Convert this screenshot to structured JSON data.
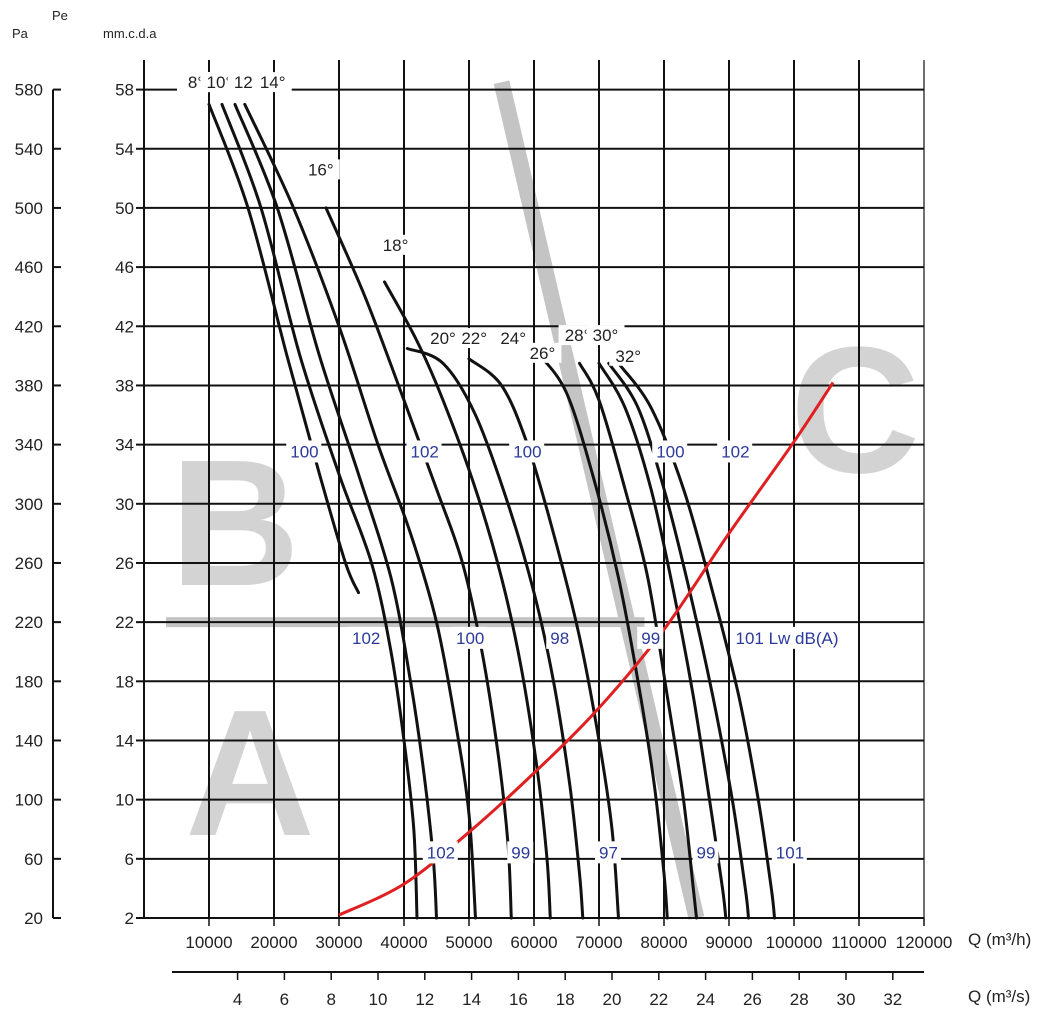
{
  "chart_data": {
    "type": "line",
    "pe_label": "Pe",
    "unit_pa": "Pa",
    "unit_mmcda": "mm.c.d.a",
    "x_label_m3h": "Q (m³/h)",
    "x_label_m3s": "Q (m³/s)",
    "xlim_m3h": [
      0,
      120000
    ],
    "ylim_mmcda": [
      2,
      60
    ],
    "x_ticks_m3h": [
      10000,
      20000,
      30000,
      40000,
      50000,
      60000,
      70000,
      80000,
      90000,
      100000,
      110000,
      120000
    ],
    "x_ticks_m3s": [
      4,
      6,
      8,
      10,
      12,
      14,
      16,
      18,
      20,
      22,
      24,
      26,
      28,
      30,
      32
    ],
    "y_ticks_mmcda": [
      2,
      6,
      10,
      14,
      18,
      22,
      26,
      30,
      34,
      38,
      42,
      46,
      50,
      54,
      58
    ],
    "y_ticks_pa": [
      20,
      60,
      100,
      140,
      180,
      220,
      260,
      300,
      340,
      380,
      420,
      460,
      500,
      540,
      580
    ],
    "zone_labels": [
      "A",
      "B",
      "C"
    ],
    "series": [
      {
        "name": "8°",
        "points": [
          [
            10000,
            57
          ],
          [
            16000,
            50
          ],
          [
            22000,
            40
          ],
          [
            27000,
            32
          ],
          [
            31000,
            26
          ],
          [
            33000,
            24
          ]
        ]
      },
      {
        "name": "10°",
        "points": [
          [
            12000,
            57
          ],
          [
            18000,
            50
          ],
          [
            24000,
            40
          ],
          [
            30000,
            32
          ],
          [
            35000,
            26
          ],
          [
            38000,
            20
          ],
          [
            40000,
            14
          ],
          [
            41500,
            8
          ],
          [
            42000,
            2
          ]
        ]
      },
      {
        "name": "12°",
        "points": [
          [
            14000,
            57
          ],
          [
            20500,
            50
          ],
          [
            27000,
            40
          ],
          [
            33000,
            32
          ],
          [
            38000,
            25
          ],
          [
            41000,
            18
          ],
          [
            43000,
            12
          ],
          [
            44500,
            6
          ],
          [
            45000,
            2
          ]
        ]
      },
      {
        "name": "14°",
        "points": [
          [
            15500,
            57
          ],
          [
            23000,
            50
          ],
          [
            30000,
            42
          ],
          [
            36000,
            34
          ],
          [
            41000,
            28
          ],
          [
            45000,
            22
          ],
          [
            48000,
            15
          ],
          [
            50000,
            9
          ],
          [
            51000,
            2
          ]
        ]
      },
      {
        "name": "16°",
        "points": [
          [
            28000,
            50
          ],
          [
            34000,
            44
          ],
          [
            40000,
            37
          ],
          [
            45000,
            31
          ],
          [
            49000,
            26
          ],
          [
            52000,
            20
          ],
          [
            54500,
            13
          ],
          [
            56000,
            7
          ],
          [
            56500,
            2
          ]
        ]
      },
      {
        "name": "18°",
        "points": [
          [
            37000,
            45
          ],
          [
            42000,
            41
          ],
          [
            46000,
            37
          ],
          [
            51000,
            31
          ],
          [
            55000,
            25
          ],
          [
            58000,
            19
          ],
          [
            60500,
            12
          ],
          [
            62000,
            6
          ],
          [
            62500,
            2
          ]
        ]
      },
      {
        "name": "20°",
        "points": [
          [
            40500,
            40.5
          ],
          [
            46000,
            39.5
          ],
          [
            51000,
            36
          ],
          [
            56000,
            30
          ],
          [
            60000,
            24
          ],
          [
            63000,
            18
          ],
          [
            65500,
            11
          ],
          [
            67000,
            5
          ],
          [
            67500,
            2
          ]
        ]
      },
      {
        "name": "22°",
        "points": [
          [
            50000,
            39.8
          ],
          [
            55000,
            38
          ],
          [
            59000,
            34
          ],
          [
            63000,
            28
          ],
          [
            67000,
            21
          ],
          [
            70000,
            14
          ],
          [
            72000,
            8
          ],
          [
            73000,
            2
          ]
        ]
      },
      {
        "name": "24°",
        "points": [
          [
            61000,
            40
          ],
          [
            65000,
            37.5
          ],
          [
            69000,
            32
          ],
          [
            73000,
            25
          ],
          [
            76000,
            18
          ],
          [
            78500,
            11
          ],
          [
            80000,
            5
          ],
          [
            80500,
            2
          ]
        ]
      },
      {
        "name": "26°",
        "points": [
          [
            67000,
            39.5
          ],
          [
            70000,
            37
          ],
          [
            74000,
            31
          ],
          [
            77500,
            25
          ],
          [
            80500,
            17
          ],
          [
            83000,
            10
          ],
          [
            84500,
            4
          ],
          [
            85000,
            2
          ]
        ]
      },
      {
        "name": "28°",
        "points": [
          [
            70000,
            39.5
          ],
          [
            74000,
            36.5
          ],
          [
            78000,
            31
          ],
          [
            81500,
            24
          ],
          [
            84500,
            17
          ],
          [
            87000,
            10
          ],
          [
            89000,
            4
          ],
          [
            89500,
            2
          ]
        ]
      },
      {
        "name": "30°",
        "points": [
          [
            71500,
            39.5
          ],
          [
            76000,
            36.5
          ],
          [
            80000,
            31
          ],
          [
            84000,
            24
          ],
          [
            87500,
            17
          ],
          [
            90500,
            10
          ],
          [
            92500,
            4
          ],
          [
            93000,
            2
          ]
        ]
      },
      {
        "name": "32°",
        "points": [
          [
            73000,
            39.5
          ],
          [
            78000,
            36.5
          ],
          [
            83000,
            31
          ],
          [
            87500,
            24
          ],
          [
            91500,
            17
          ],
          [
            94500,
            10
          ],
          [
            96500,
            4
          ],
          [
            97000,
            2
          ]
        ]
      }
    ],
    "angle_labels": [
      {
        "text": "8°",
        "q": 8000,
        "p": 58.1
      },
      {
        "text": "10°",
        "q": 11600,
        "p": 58.1
      },
      {
        "text": "12°",
        "q": 15800,
        "p": 58.1
      },
      {
        "text": "14°",
        "q": 19800,
        "p": 58.1
      },
      {
        "text": "16°",
        "q": 27200,
        "p": 52.2
      },
      {
        "text": "18°",
        "q": 38700,
        "p": 47.1
      },
      {
        "text": "20°",
        "q": 46000,
        "p": 40.8
      },
      {
        "text": "22°",
        "q": 50800,
        "p": 40.8
      },
      {
        "text": "24°",
        "q": 56800,
        "p": 40.8
      },
      {
        "text": "26°",
        "q": 61300,
        "p": 39.8
      },
      {
        "text": "28°",
        "q": 66700,
        "p": 41.0
      },
      {
        "text": "30°",
        "q": 71000,
        "p": 41.0
      },
      {
        "text": "32°",
        "q": 74500,
        "p": 39.6
      }
    ],
    "noise_labels": [
      {
        "text": "100",
        "q": 22500,
        "p": 33.2
      },
      {
        "text": "102",
        "q": 41000,
        "p": 33.2
      },
      {
        "text": "100",
        "q": 56800,
        "p": 33.2
      },
      {
        "text": "100",
        "q": 78800,
        "p": 33.2
      },
      {
        "text": "102",
        "q": 88800,
        "p": 33.2
      },
      {
        "text": "102",
        "q": 32000,
        "p": 20.6
      },
      {
        "text": "100",
        "q": 48000,
        "p": 20.6
      },
      {
        "text": "98",
        "q": 62500,
        "p": 20.6
      },
      {
        "text": "99",
        "q": 76500,
        "p": 20.6
      },
      {
        "text": "101 Lw dB(A)",
        "q": 91000,
        "p": 20.6
      },
      {
        "text": "102",
        "q": 43500,
        "p": 6.1
      },
      {
        "text": "99",
        "q": 56500,
        "p": 6.1
      },
      {
        "text": "97",
        "q": 70000,
        "p": 6.1
      },
      {
        "text": "99",
        "q": 85000,
        "p": 6.1
      },
      {
        "text": "101",
        "q": 97200,
        "p": 6.1
      }
    ],
    "system_curve": {
      "name": "system curve",
      "points": [
        [
          30000,
          2.2
        ],
        [
          40000,
          4.3
        ],
        [
          50000,
          7.8
        ],
        [
          60000,
          11.8
        ],
        [
          70000,
          16.2
        ],
        [
          80000,
          21.5
        ],
        [
          90000,
          28.0
        ],
        [
          100000,
          34.2
        ],
        [
          106000,
          38.2
        ]
      ]
    },
    "band_horizontal_p": 22,
    "band_diagonal": [
      [
        55000,
        58.5
      ],
      [
        85000,
        2
      ]
    ],
    "colors": {
      "curves": "#111111",
      "system_curve": "#e02020",
      "bands": "#c4c4c4",
      "zone_letters": "#d3d3d3",
      "noise_text": "#2b3a9a"
    }
  }
}
